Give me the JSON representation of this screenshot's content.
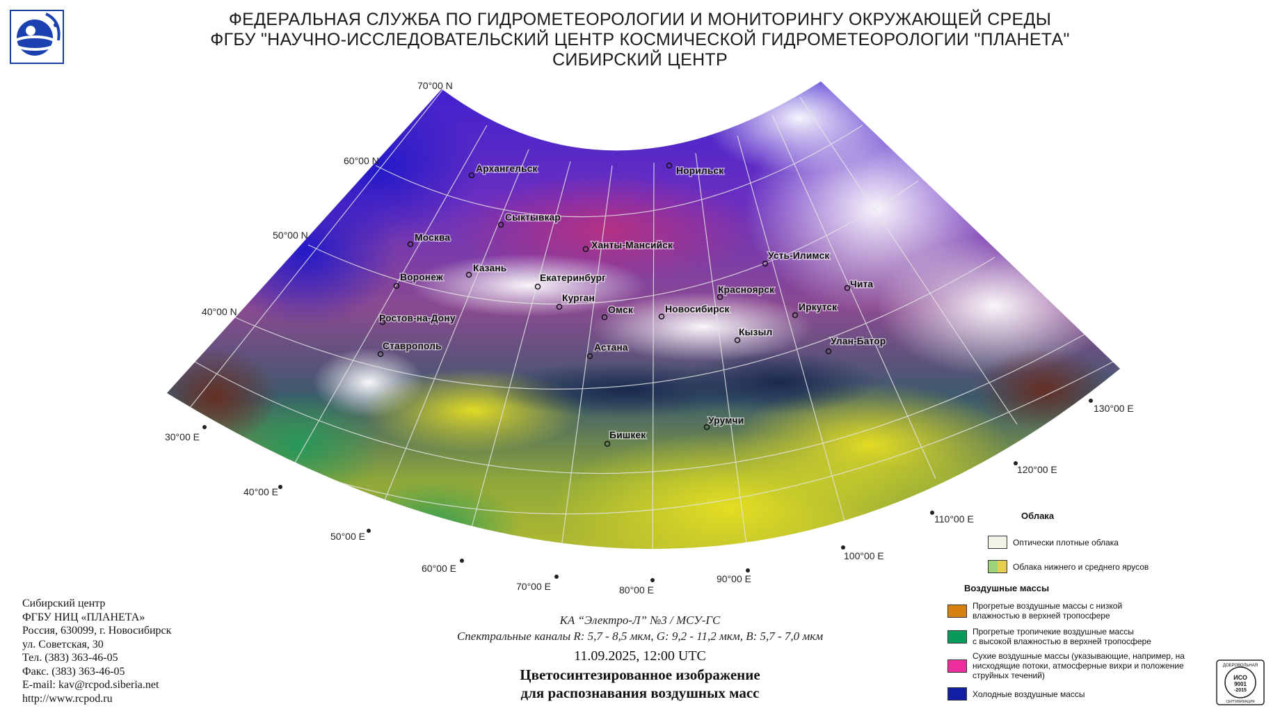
{
  "header": {
    "line1": "ФЕДЕРАЛЬНАЯ СЛУЖБА ПО ГИДРОМЕТЕОРОЛОГИИ И МОНИТОРИНГУ ОКРУЖАЮЩЕЙ СРЕДЫ",
    "line2": "ФГБУ \"НАУЧНО-ИССЛЕДОВАТЕЛЬСКИЙ ЦЕНТР КОСМИЧЕСКОЙ ГИДРОМЕТЕОРОЛОГИИ \"ПЛАНЕТА\"",
    "line3": "СИБИРСКИЙ ЦЕНТР"
  },
  "graticule": {
    "latitudes": [
      "70°00 N",
      "60°00 N",
      "50°00 N",
      "40°00 N"
    ],
    "longitudes": [
      "30°00 E",
      "40°00 E",
      "50°00 E",
      "60°00 E",
      "70°00 E",
      "80°00 E",
      "90°00 E",
      "100°00 E",
      "110°00 E",
      "120°00 E",
      "130°00 E"
    ]
  },
  "cities": [
    "Архангельск",
    "Норильск",
    "Сыктывкар",
    "Москва",
    "Ханты-Мансийск",
    "Усть-Илимск",
    "Казань",
    "Воронеж",
    "Екатеринбург",
    "Красноярск",
    "Чита",
    "Курган",
    "Омск",
    "Новосибирск",
    "Иркутск",
    "Ростов-на-Дону",
    "Кызыл",
    "Улан-Батор",
    "Ставрополь",
    "Астана",
    "Урумчи",
    "Бишкек"
  ],
  "satellite": {
    "name": "КА “Электро-Л” №3 / МСУ-ГС",
    "channels": "Спектральные каналы R: 5,7 - 8,5 мкм, G: 9,2 - 11,2 мкм, B: 5,7 - 7,0 мкм",
    "datetime": "11.09.2025, 12:00 UTC",
    "title1": "Цветосинтезированное изображение",
    "title2": "для распознавания воздушных масс"
  },
  "address": {
    "l1": "Сибирский центр",
    "l2": "ФГБУ НИЦ «ПЛАНЕТА»",
    "l3": "Россия, 630099, г. Новосибирск",
    "l4": "ул. Советская, 30",
    "l5": "Тел. (383) 363-46-05",
    "l6": "Факс. (383) 363-46-05",
    "l7": "E-mail: kav@rcpod.siberia.net",
    "l8": "http://www.rcpod.ru"
  },
  "legend": {
    "clouds_header": "Облака",
    "dense": {
      "label": "Оптически плотные облака",
      "color": "#f3f3ea"
    },
    "low_mid": {
      "label": "Облака нижнего и среднего ярусов",
      "color_a": "#9dd17a",
      "color_b": "#e7cf4c"
    },
    "airmass_header": "Воздушные массы",
    "warm_dry": {
      "label1": "Прогретые воздушные массы с низкой",
      "label2": "влажностью в верхней тропосфере",
      "color": "#d6800f"
    },
    "warm_moist": {
      "label1": "Прогретые тропичекие воздушные массы",
      "label2": "с высокой влажностью в верхней тропосфере",
      "color": "#079a5a"
    },
    "dry": {
      "label1": "Сухие воздушные массы (указывающие, например, на",
      "label2": "нисходящие потоки, атмосферные вихри и положение",
      "label3": "струйных течений)",
      "color": "#ee2f9d"
    },
    "cold": {
      "label": "Холодные воздушные массы",
      "color": "#121ea3"
    }
  },
  "iso": {
    "t1": "ДОБРОВОЛЬНАЯ",
    "t2": "ИСО",
    "t3": "9001",
    "t4": "-2015",
    "t5": "СЕРТИФИКАЦИЯ"
  }
}
